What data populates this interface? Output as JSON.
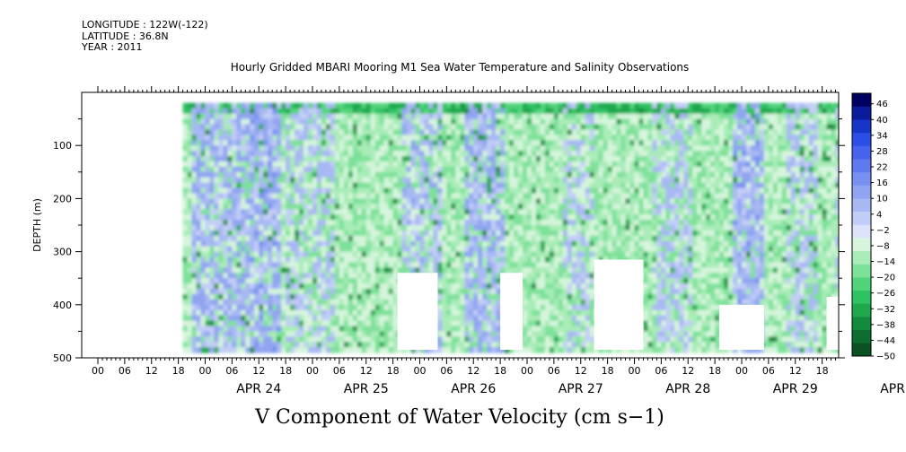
{
  "meta": {
    "longitude": "LONGITUDE : 122W(-122)",
    "latitude": "LATITUDE : 36.8N",
    "year": "YEAR : 2011"
  },
  "chart_data": {
    "type": "heatmap",
    "title": "Hourly Gridded MBARI Mooring M1 Sea Water Temperature and Salinity Observations",
    "xlabel": "V Component of Water Velocity (cm s−1)",
    "ylabel": "DEPTH (m)",
    "hour_ticks": [
      "00",
      "06",
      "12",
      "18"
    ],
    "days": [
      "APR 24",
      "APR 25",
      "APR 26",
      "APR 27",
      "APR 28",
      "APR 29",
      "APR 30"
    ],
    "ylim": [
      500,
      0
    ],
    "yticks": [
      100,
      200,
      300,
      400,
      500
    ],
    "data_depth_range": [
      20,
      485
    ],
    "colorbar": {
      "min": -50,
      "max": 50,
      "labels": [
        46,
        40,
        34,
        28,
        22,
        16,
        10,
        4,
        -2,
        -8,
        -14,
        -20,
        -26,
        -32,
        -38,
        -44,
        -50
      ],
      "colors": [
        "#000060",
        "#0a1c9c",
        "#1636c8",
        "#2a4ee6",
        "#4563ec",
        "#5f7aee",
        "#7890f0",
        "#90a4f1",
        "#a8b8f3",
        "#c2cef7",
        "#dde3fa",
        "#d6f5dc",
        "#a9ecb8",
        "#7ee19a",
        "#52d47c",
        "#2fc264",
        "#1fa84e",
        "#148a3e",
        "#0e6e30",
        "#0a5224"
      ]
    },
    "missing_regions": [
      {
        "from_hour": 43,
        "to_hour": 52,
        "from_depth": 340,
        "to_depth": 485
      },
      {
        "from_hour": 66,
        "to_hour": 71,
        "from_depth": 340,
        "to_depth": 485
      },
      {
        "from_hour": 87,
        "to_hour": 98,
        "from_depth": 315,
        "to_depth": 485
      },
      {
        "from_hour": 115,
        "to_hour": 125,
        "from_depth": 400,
        "to_depth": 485
      },
      {
        "from_hour": 139,
        "to_hour": 151,
        "from_depth": 385,
        "to_depth": 485
      },
      {
        "from_hour": 163,
        "to_hour": 177,
        "from_depth": 330,
        "to_depth": 485
      }
    ]
  }
}
